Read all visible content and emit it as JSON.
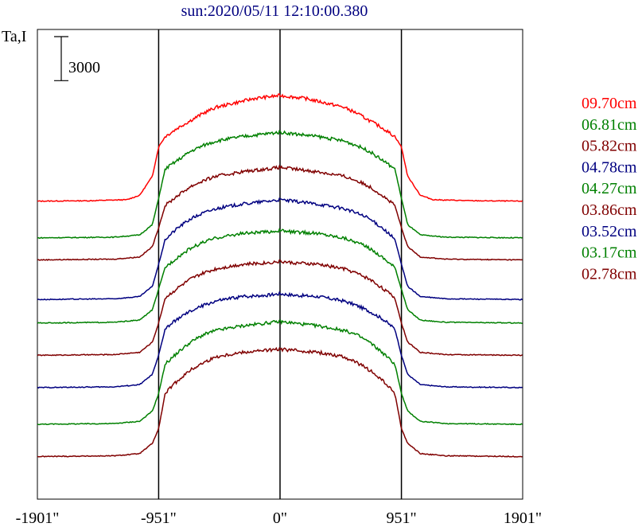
{
  "chart_data": {
    "type": "line",
    "title": "sun:2020/05/11 12:10:00.380",
    "ylabel": "Ta,I",
    "scale_bar_label": "3000",
    "scale_bar_value": 3000,
    "xlim": [
      -1901,
      1901
    ],
    "ylim": [
      0,
      32000
    ],
    "x_ticks": [
      -1901,
      -951,
      0,
      951,
      1901
    ],
    "x_tick_labels": [
      "-1901\"",
      "-951\"",
      "0\"",
      "951\"",
      "1901\""
    ],
    "reference_lines": [
      -951,
      0,
      951
    ],
    "legend_position": "right",
    "series": [
      {
        "name": "09.70cm",
        "color": "#ff0000",
        "baseline": 20300,
        "peak": 27500,
        "profile": [
          [
            -1901,
            20300
          ],
          [
            -1500,
            20330
          ],
          [
            -1200,
            20400
          ],
          [
            -1100,
            20700
          ],
          [
            -1000,
            22000
          ],
          [
            -951,
            24000
          ],
          [
            -900,
            24700
          ],
          [
            -800,
            25300
          ],
          [
            -700,
            25800
          ],
          [
            -600,
            26300
          ],
          [
            -500,
            26700
          ],
          [
            -400,
            26900
          ],
          [
            -300,
            27100
          ],
          [
            -200,
            27300
          ],
          [
            -100,
            27400
          ],
          [
            0,
            27500
          ],
          [
            100,
            27400
          ],
          [
            200,
            27300
          ],
          [
            300,
            27100
          ],
          [
            400,
            26900
          ],
          [
            500,
            26700
          ],
          [
            600,
            26300
          ],
          [
            700,
            25800
          ],
          [
            800,
            25300
          ],
          [
            900,
            24700
          ],
          [
            951,
            24000
          ],
          [
            1000,
            22000
          ],
          [
            1100,
            20700
          ],
          [
            1200,
            20400
          ],
          [
            1500,
            20330
          ],
          [
            1901,
            20300
          ]
        ]
      },
      {
        "name": "06.81cm",
        "color": "#008000",
        "baseline": 17800,
        "peak": 25000,
        "profile": [
          [
            -1901,
            17800
          ],
          [
            -1300,
            17850
          ],
          [
            -1100,
            18000
          ],
          [
            -1000,
            18700
          ],
          [
            -951,
            20500
          ],
          [
            -900,
            22500
          ],
          [
            -800,
            23100
          ],
          [
            -700,
            23700
          ],
          [
            -600,
            24100
          ],
          [
            -500,
            24400
          ],
          [
            -300,
            24700
          ],
          [
            -100,
            24900
          ],
          [
            0,
            25000
          ],
          [
            100,
            24900
          ],
          [
            300,
            24700
          ],
          [
            500,
            24400
          ],
          [
            600,
            24100
          ],
          [
            700,
            23700
          ],
          [
            800,
            23100
          ],
          [
            900,
            22500
          ],
          [
            951,
            20500
          ],
          [
            1000,
            18700
          ],
          [
            1100,
            18000
          ],
          [
            1300,
            17850
          ],
          [
            1901,
            17800
          ]
        ]
      },
      {
        "name": "05.82cm",
        "color": "#800000",
        "baseline": 16300,
        "peak": 22600,
        "profile": [
          [
            -1901,
            16300
          ],
          [
            -1300,
            16350
          ],
          [
            -1100,
            16500
          ],
          [
            -1000,
            17200
          ],
          [
            -951,
            18500
          ],
          [
            -900,
            20000
          ],
          [
            -800,
            20700
          ],
          [
            -700,
            21300
          ],
          [
            -600,
            21700
          ],
          [
            -500,
            22000
          ],
          [
            -300,
            22300
          ],
          [
            -100,
            22500
          ],
          [
            0,
            22600
          ],
          [
            100,
            22500
          ],
          [
            300,
            22300
          ],
          [
            500,
            22000
          ],
          [
            600,
            21700
          ],
          [
            700,
            21300
          ],
          [
            800,
            20700
          ],
          [
            900,
            20000
          ],
          [
            951,
            18500
          ],
          [
            1000,
            17200
          ],
          [
            1100,
            16500
          ],
          [
            1300,
            16350
          ],
          [
            1901,
            16300
          ]
        ]
      },
      {
        "name": "04.78cm",
        "color": "#000080",
        "baseline": 13600,
        "peak": 20400,
        "profile": [
          [
            -1901,
            13600
          ],
          [
            -1300,
            13650
          ],
          [
            -1100,
            13800
          ],
          [
            -1000,
            14500
          ],
          [
            -951,
            16000
          ],
          [
            -900,
            17700
          ],
          [
            -800,
            18500
          ],
          [
            -700,
            19100
          ],
          [
            -600,
            19500
          ],
          [
            -500,
            19800
          ],
          [
            -300,
            20100
          ],
          [
            -100,
            20300
          ],
          [
            0,
            20400
          ],
          [
            100,
            20300
          ],
          [
            300,
            20100
          ],
          [
            500,
            19800
          ],
          [
            600,
            19500
          ],
          [
            700,
            19100
          ],
          [
            800,
            18500
          ],
          [
            900,
            17700
          ],
          [
            951,
            16000
          ],
          [
            1000,
            14500
          ],
          [
            1100,
            13800
          ],
          [
            1300,
            13650
          ],
          [
            1901,
            13600
          ]
        ]
      },
      {
        "name": "04.27cm",
        "color": "#008000",
        "baseline": 12000,
        "peak": 18300,
        "profile": [
          [
            -1901,
            12000
          ],
          [
            -1300,
            12050
          ],
          [
            -1100,
            12200
          ],
          [
            -1000,
            12900
          ],
          [
            -951,
            14300
          ],
          [
            -900,
            15800
          ],
          [
            -800,
            16500
          ],
          [
            -700,
            17100
          ],
          [
            -600,
            17500
          ],
          [
            -500,
            17800
          ],
          [
            -300,
            18100
          ],
          [
            -100,
            18200
          ],
          [
            0,
            18300
          ],
          [
            100,
            18200
          ],
          [
            300,
            18100
          ],
          [
            500,
            17800
          ],
          [
            600,
            17500
          ],
          [
            700,
            17100
          ],
          [
            800,
            16500
          ],
          [
            900,
            15800
          ],
          [
            951,
            14300
          ],
          [
            1000,
            12900
          ],
          [
            1100,
            12200
          ],
          [
            1300,
            12050
          ],
          [
            1901,
            12000
          ]
        ]
      },
      {
        "name": "03.86cm",
        "color": "#800000",
        "baseline": 9800,
        "peak": 16200,
        "profile": [
          [
            -1901,
            9800
          ],
          [
            -1300,
            9850
          ],
          [
            -1100,
            10000
          ],
          [
            -1000,
            10700
          ],
          [
            -951,
            12000
          ],
          [
            -900,
            13700
          ],
          [
            -800,
            14400
          ],
          [
            -700,
            15000
          ],
          [
            -600,
            15400
          ],
          [
            -500,
            15700
          ],
          [
            -300,
            16000
          ],
          [
            -100,
            16100
          ],
          [
            0,
            16200
          ],
          [
            100,
            16100
          ],
          [
            300,
            16000
          ],
          [
            500,
            15700
          ],
          [
            600,
            15400
          ],
          [
            700,
            15000
          ],
          [
            800,
            14400
          ],
          [
            900,
            13700
          ],
          [
            951,
            12000
          ],
          [
            1000,
            10700
          ],
          [
            1100,
            10000
          ],
          [
            1300,
            9850
          ],
          [
            1901,
            9800
          ]
        ]
      },
      {
        "name": "03.52cm",
        "color": "#000080",
        "baseline": 7600,
        "peak": 14000,
        "profile": [
          [
            -1901,
            7600
          ],
          [
            -1300,
            7650
          ],
          [
            -1100,
            7800
          ],
          [
            -1000,
            8500
          ],
          [
            -951,
            9800
          ],
          [
            -900,
            11600
          ],
          [
            -800,
            12300
          ],
          [
            -700,
            12800
          ],
          [
            -600,
            13200
          ],
          [
            -500,
            13500
          ],
          [
            -300,
            13800
          ],
          [
            -100,
            13900
          ],
          [
            0,
            14000
          ],
          [
            100,
            13900
          ],
          [
            300,
            13800
          ],
          [
            500,
            13500
          ],
          [
            600,
            13200
          ],
          [
            700,
            12800
          ],
          [
            800,
            12300
          ],
          [
            900,
            11600
          ],
          [
            951,
            9800
          ],
          [
            1000,
            8500
          ],
          [
            1100,
            7800
          ],
          [
            1300,
            7650
          ],
          [
            1901,
            7600
          ]
        ]
      },
      {
        "name": "03.17cm",
        "color": "#008000",
        "baseline": 5100,
        "peak": 12100,
        "profile": [
          [
            -1901,
            5100
          ],
          [
            -1300,
            5150
          ],
          [
            -1100,
            5300
          ],
          [
            -1000,
            6000
          ],
          [
            -951,
            7200
          ],
          [
            -900,
            9200
          ],
          [
            -800,
            10000
          ],
          [
            -700,
            10700
          ],
          [
            -600,
            11200
          ],
          [
            -500,
            11500
          ],
          [
            -300,
            11800
          ],
          [
            -100,
            12000
          ],
          [
            0,
            12100
          ],
          [
            100,
            12000
          ],
          [
            300,
            11800
          ],
          [
            500,
            11500
          ],
          [
            600,
            11200
          ],
          [
            700,
            10700
          ],
          [
            800,
            10000
          ],
          [
            900,
            9200
          ],
          [
            951,
            7200
          ],
          [
            1000,
            6000
          ],
          [
            1100,
            5300
          ],
          [
            1300,
            5150
          ],
          [
            1901,
            5100
          ]
        ]
      },
      {
        "name": "02.78cm",
        "color": "#800000",
        "baseline": 2900,
        "peak": 10200,
        "profile": [
          [
            -1901,
            2900
          ],
          [
            -1300,
            2950
          ],
          [
            -1100,
            3100
          ],
          [
            -1000,
            3800
          ],
          [
            -951,
            4800
          ],
          [
            -900,
            7200
          ],
          [
            -800,
            8100
          ],
          [
            -700,
            8800
          ],
          [
            -600,
            9300
          ],
          [
            -500,
            9700
          ],
          [
            -300,
            10000
          ],
          [
            -100,
            10150
          ],
          [
            0,
            10200
          ],
          [
            100,
            10150
          ],
          [
            300,
            10000
          ],
          [
            500,
            9700
          ],
          [
            600,
            9300
          ],
          [
            700,
            8800
          ],
          [
            800,
            8100
          ],
          [
            900,
            7200
          ],
          [
            951,
            4800
          ],
          [
            1000,
            3800
          ],
          [
            1100,
            3100
          ],
          [
            1300,
            2950
          ],
          [
            1901,
            2900
          ]
        ]
      }
    ]
  }
}
